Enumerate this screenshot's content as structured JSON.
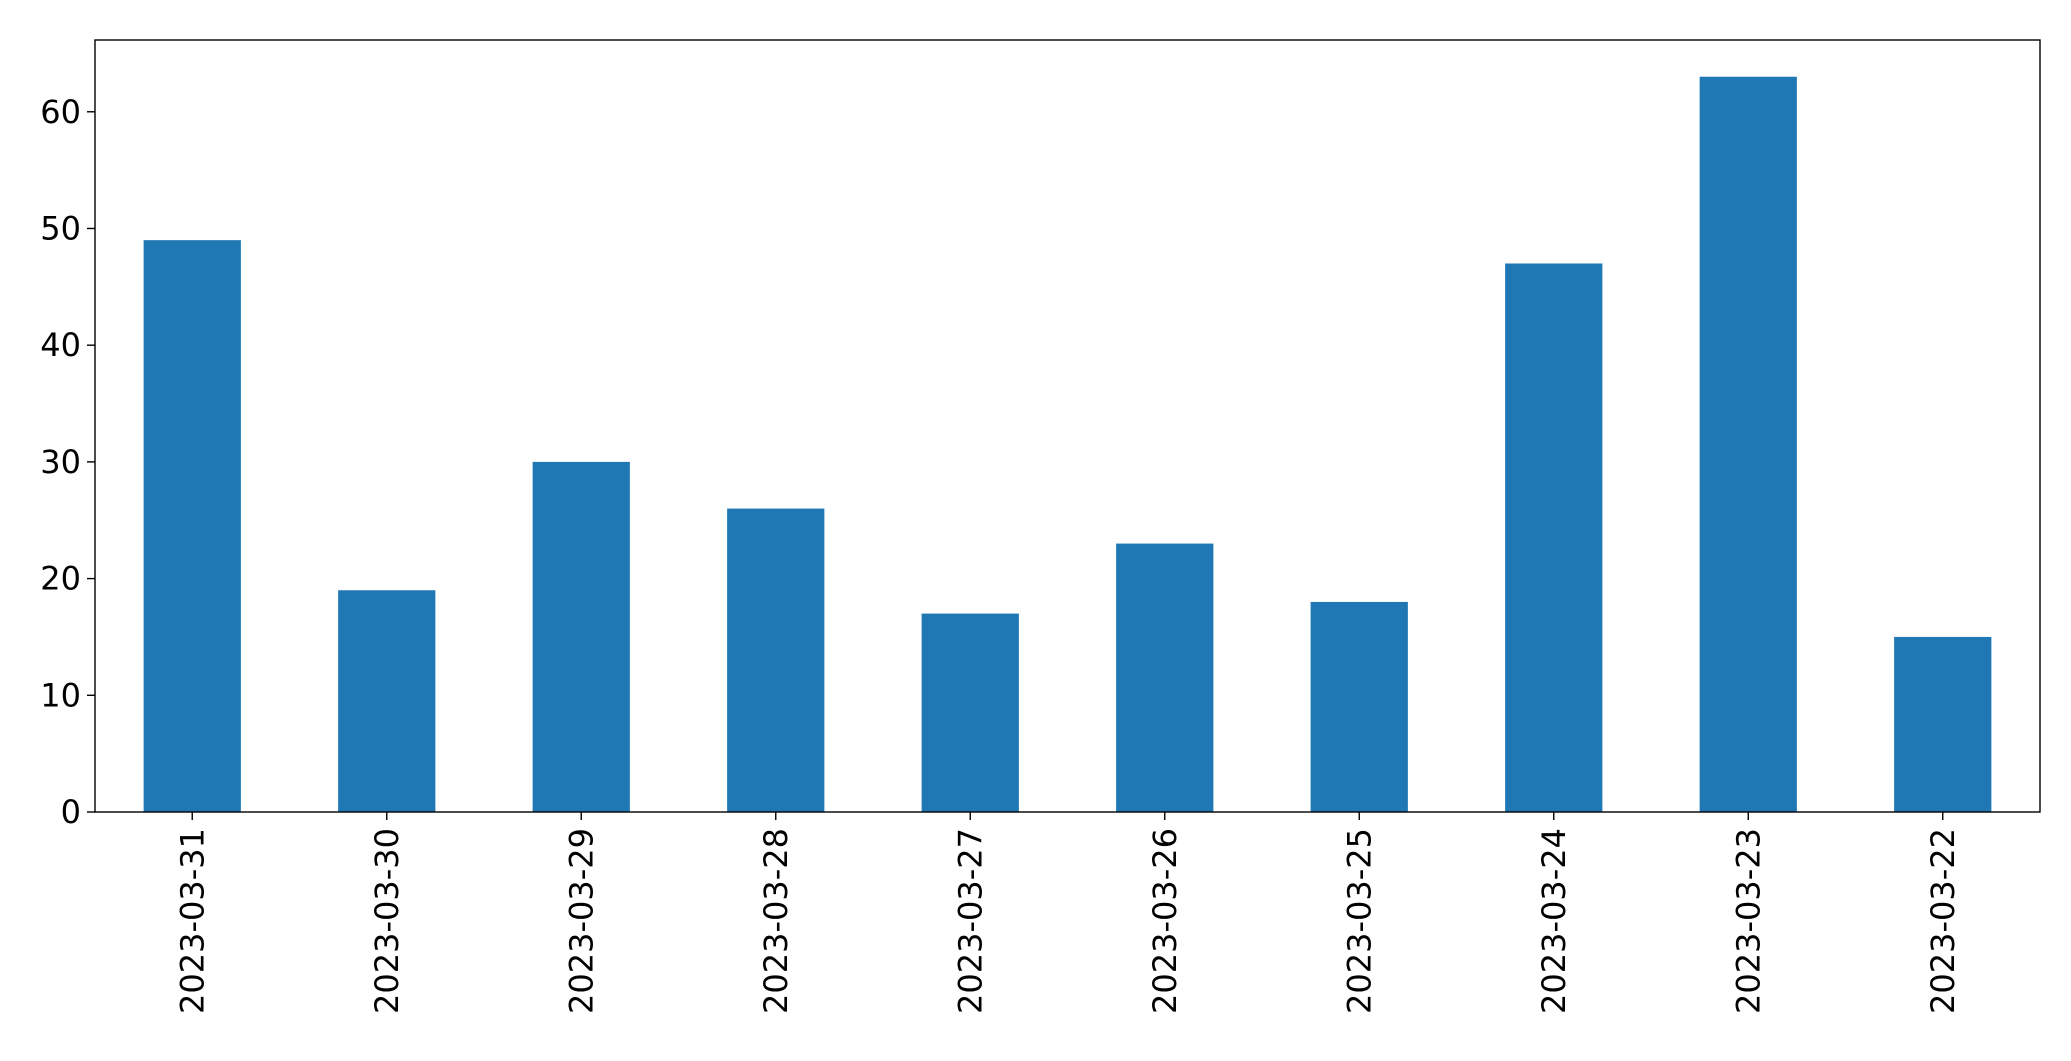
{
  "chart_data": {
    "type": "bar",
    "title": "",
    "xlabel": "",
    "ylabel": "",
    "categories": [
      "2023-03-31",
      "2023-03-30",
      "2023-03-29",
      "2023-03-28",
      "2023-03-27",
      "2023-03-26",
      "2023-03-25",
      "2023-03-24",
      "2023-03-23",
      "2023-03-22"
    ],
    "values": [
      49,
      19,
      30,
      26,
      17,
      23,
      18,
      47,
      63,
      15
    ],
    "ylim": [
      0,
      66.15
    ],
    "yticks": [
      0,
      10,
      20,
      30,
      40,
      50,
      60
    ],
    "bar_color": "#1f77b4",
    "grid": false,
    "legend": "none"
  }
}
